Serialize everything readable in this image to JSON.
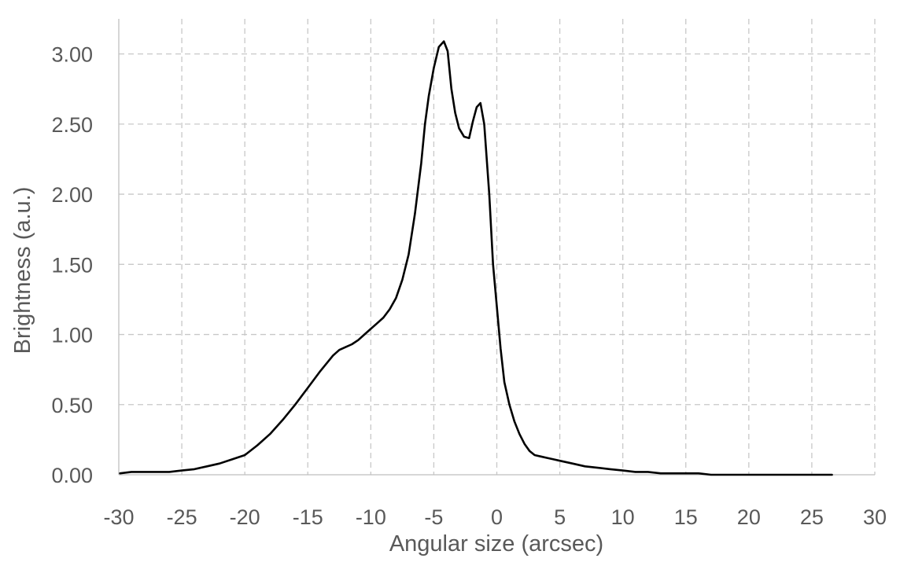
{
  "chart_data": {
    "type": "line",
    "title": "",
    "xlabel": "Angular size (arcsec)",
    "ylabel": "Brightness (a.u.)",
    "xlim": [
      -30,
      30
    ],
    "ylim": [
      0,
      3.25
    ],
    "grid": true,
    "x_ticks": [
      -30,
      -25,
      -20,
      -15,
      -10,
      -5,
      0,
      5,
      10,
      15,
      20,
      25,
      30
    ],
    "x_tick_labels": [
      "-30",
      "-25",
      "-20",
      "-15",
      "-10",
      "-5",
      "0",
      "5",
      "10",
      "15",
      "20",
      "25",
      "30"
    ],
    "y_ticks": [
      0,
      0.5,
      1.0,
      1.5,
      2.0,
      2.5,
      3.0
    ],
    "y_tick_labels": [
      "0.00",
      "0.50",
      "1.00",
      "1.50",
      "2.00",
      "2.50",
      "3.00"
    ],
    "series": [
      {
        "color": "#000000",
        "x": [
          -29.9,
          -29.0,
          -28.0,
          -27.0,
          -26.0,
          -25.0,
          -24.0,
          -23.0,
          -22.0,
          -21.0,
          -20.0,
          -19.0,
          -18.0,
          -17.0,
          -16.0,
          -15.0,
          -14.0,
          -13.0,
          -12.5,
          -12.0,
          -11.5,
          -11.0,
          -10.5,
          -10.0,
          -9.5,
          -9.0,
          -8.5,
          -8.0,
          -7.5,
          -7.0,
          -6.5,
          -6.0,
          -5.7,
          -5.4,
          -5.0,
          -4.6,
          -4.2,
          -3.9,
          -3.6,
          -3.3,
          -3.0,
          -2.6,
          -2.2,
          -1.9,
          -1.6,
          -1.3,
          -1.0,
          -0.6,
          -0.3,
          0.0,
          0.3,
          0.6,
          1.0,
          1.4,
          1.8,
          2.2,
          2.6,
          3.0,
          3.5,
          4.0,
          4.5,
          5.0,
          6.0,
          7.0,
          8.0,
          9.0,
          10.0,
          11.0,
          12.0,
          13.0,
          14.0,
          15.0,
          16.0,
          17.0,
          18.0,
          19.0,
          20.0,
          21.0,
          22.0,
          23.0,
          24.0,
          25.0,
          26.0,
          26.6
        ],
        "y": [
          0.01,
          0.02,
          0.02,
          0.02,
          0.02,
          0.03,
          0.04,
          0.06,
          0.08,
          0.11,
          0.14,
          0.21,
          0.29,
          0.39,
          0.5,
          0.62,
          0.74,
          0.85,
          0.89,
          0.91,
          0.93,
          0.96,
          1.0,
          1.04,
          1.08,
          1.12,
          1.18,
          1.26,
          1.39,
          1.57,
          1.86,
          2.22,
          2.5,
          2.7,
          2.9,
          3.05,
          3.09,
          3.02,
          2.75,
          2.58,
          2.47,
          2.41,
          2.4,
          2.52,
          2.62,
          2.65,
          2.5,
          2.0,
          1.5,
          1.2,
          0.9,
          0.66,
          0.5,
          0.38,
          0.29,
          0.22,
          0.17,
          0.14,
          0.13,
          0.12,
          0.11,
          0.1,
          0.08,
          0.06,
          0.05,
          0.04,
          0.03,
          0.02,
          0.02,
          0.01,
          0.01,
          0.01,
          0.01,
          0.0,
          0.0,
          0.0,
          0.0,
          0.0,
          0.0,
          0.0,
          0.0,
          0.0,
          0.0,
          0.0
        ]
      }
    ]
  }
}
